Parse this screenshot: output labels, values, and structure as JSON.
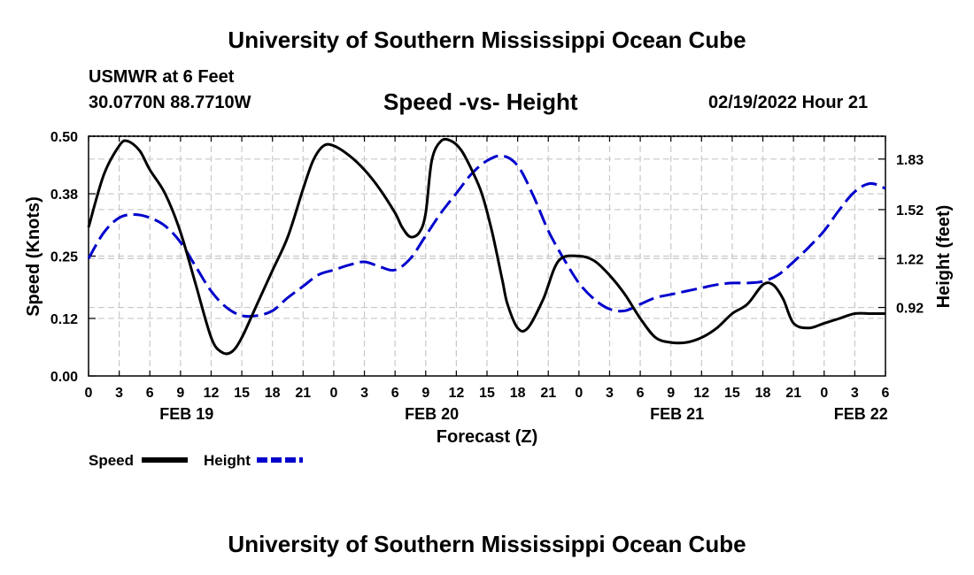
{
  "header": {
    "title": "University of Southern Mississippi Ocean Cube",
    "station": "USMWR at 6 Feet",
    "coordinates": "30.0770N  88.7710W",
    "timestamp": "02/19/2022 Hour 21"
  },
  "footer": {
    "title": "University of Southern Mississippi Ocean Cube"
  },
  "chart_data": {
    "type": "line",
    "title": "Speed -vs- Height",
    "xlabel": "Forecast (Z)",
    "ylabel": "Speed (Knots)",
    "y2label": "Height (feet)",
    "xlim": [
      0,
      78
    ],
    "ylim": [
      0,
      0.5
    ],
    "y2lim": [
      0.5,
      1.97
    ],
    "x_ticks": [
      0,
      3,
      6,
      9,
      12,
      15,
      18,
      21,
      24,
      27,
      30,
      33,
      36,
      39,
      42,
      45,
      48,
      51,
      54,
      57,
      60,
      63,
      66,
      69,
      72,
      75,
      78
    ],
    "x_tick_labels": [
      "0",
      "3",
      "6",
      "9",
      "12",
      "15",
      "18",
      "21",
      "0",
      "3",
      "6",
      "9",
      "12",
      "15",
      "18",
      "21",
      "0",
      "3",
      "6",
      "9",
      "12",
      "15",
      "18",
      "21",
      "0",
      "3",
      "6"
    ],
    "date_labels": [
      {
        "x": 9.6,
        "label": "FEB 19"
      },
      {
        "x": 33.6,
        "label": "FEB 20"
      },
      {
        "x": 57.6,
        "label": "FEB 21"
      },
      {
        "x": 75.6,
        "label": "FEB 22"
      }
    ],
    "y_ticks": [
      0.0,
      0.12,
      0.25,
      0.38,
      0.5
    ],
    "y_tick_labels": [
      "0.00",
      "0.12",
      "0.25",
      "0.38",
      "0.50"
    ],
    "y2_ticks": [
      0.92,
      1.22,
      1.52,
      1.83
    ],
    "y2_tick_labels": [
      "0.92",
      "1.22",
      "1.52",
      "1.83"
    ],
    "grid": true,
    "legend_position": "bottom-left",
    "series": [
      {
        "name": "Speed",
        "axis": "left",
        "color": "#000000",
        "dash": "solid",
        "x": [
          0,
          1.5,
          3,
          3.8,
          5,
          6,
          7.5,
          9,
          10.5,
          12,
          13,
          14,
          15,
          16.5,
          18,
          19.5,
          21,
          22,
          23,
          24,
          25.5,
          27,
          28.5,
          30,
          30.7,
          31.5,
          32.4,
          33,
          33.6,
          34.5,
          35.5,
          36.5,
          37.5,
          38.5,
          39.5,
          40.5,
          41,
          42,
          43,
          44.5,
          46,
          48,
          49.5,
          51,
          52.5,
          54,
          55.5,
          57,
          58.5,
          60,
          61.5,
          63,
          64.5,
          66,
          67,
          68,
          69,
          70.5,
          72,
          73.5,
          75,
          76.5,
          78
        ],
        "y": [
          0.31,
          0.42,
          0.48,
          0.49,
          0.47,
          0.43,
          0.38,
          0.3,
          0.19,
          0.08,
          0.05,
          0.05,
          0.08,
          0.15,
          0.22,
          0.29,
          0.39,
          0.45,
          0.48,
          0.48,
          0.46,
          0.43,
          0.39,
          0.34,
          0.31,
          0.29,
          0.3,
          0.34,
          0.45,
          0.49,
          0.49,
          0.47,
          0.43,
          0.38,
          0.3,
          0.2,
          0.15,
          0.1,
          0.1,
          0.16,
          0.24,
          0.25,
          0.24,
          0.21,
          0.17,
          0.12,
          0.08,
          0.07,
          0.07,
          0.08,
          0.1,
          0.13,
          0.15,
          0.19,
          0.19,
          0.16,
          0.11,
          0.1,
          0.11,
          0.12,
          0.13,
          0.13,
          0.13
        ]
      },
      {
        "name": "Height",
        "axis": "right",
        "color": "#0000cc",
        "dash": "dashed",
        "x": [
          0,
          1.5,
          3,
          4.5,
          6,
          7.5,
          9,
          10.5,
          12,
          13.5,
          15,
          16.5,
          18,
          19.5,
          21,
          22.5,
          24,
          25.5,
          27,
          28.5,
          30,
          31.5,
          33,
          34.5,
          36,
          37.5,
          39,
          40.5,
          42,
          43.5,
          45,
          46.5,
          48,
          49.5,
          51,
          52.5,
          54,
          55.5,
          57,
          58.5,
          60,
          61.5,
          63,
          64.5,
          66,
          67.5,
          69,
          70.5,
          72,
          73.5,
          75,
          76.5,
          78
        ],
        "y": [
          1.22,
          1.38,
          1.47,
          1.49,
          1.47,
          1.42,
          1.32,
          1.17,
          1.02,
          0.92,
          0.87,
          0.87,
          0.9,
          0.98,
          1.05,
          1.12,
          1.15,
          1.18,
          1.2,
          1.17,
          1.15,
          1.22,
          1.36,
          1.5,
          1.62,
          1.74,
          1.82,
          1.85,
          1.79,
          1.61,
          1.39,
          1.22,
          1.07,
          0.97,
          0.91,
          0.9,
          0.94,
          0.98,
          1.0,
          1.02,
          1.04,
          1.06,
          1.07,
          1.07,
          1.08,
          1.12,
          1.2,
          1.29,
          1.39,
          1.52,
          1.63,
          1.68,
          1.65
        ]
      }
    ]
  }
}
